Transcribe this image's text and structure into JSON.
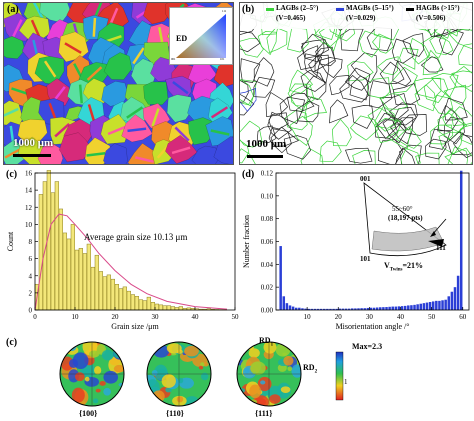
{
  "panel_a": {
    "label": "(a)",
    "legend_label": "ED",
    "scale_bar": "1000 μm",
    "ipf_corners": [
      "001",
      "101",
      "111"
    ]
  },
  "panel_b": {
    "label": "(b)",
    "scale_bar": "1000 μm",
    "legend": [
      {
        "name": "LAGBs (2–5°)",
        "value": "(V=0.465)",
        "color": "#3ad43a"
      },
      {
        "name": "MAGBs (5–15°)",
        "value": "(V=0.029)",
        "color": "#2b3fd6"
      },
      {
        "name": "HAGBs (>15°)",
        "value": "(V=0.506)",
        "color": "#000000"
      }
    ]
  },
  "panel_c": {
    "label": "(c)",
    "annotation": "Average grain size 10.13 μm"
  },
  "panel_d": {
    "label": "(d)",
    "inset": {
      "corner_001": "001",
      "corner_101": "101",
      "corner_111": "111",
      "range": "55~60°",
      "pts": "(18,197 pts)",
      "twins": "V",
      "twins_sub": "Twins",
      "twins_value": "=21%"
    }
  },
  "panel_e": {
    "label": "(c)",
    "figures": [
      "{100}",
      "{110}",
      "{111}"
    ],
    "rd1": "RD",
    "rd1_sub": "1",
    "rd2": "RD",
    "rd2_sub": "2",
    "max_label": "Max=2.3",
    "scale_tick": "1"
  },
  "chart_data": [
    {
      "type": "bar",
      "xlabel": "Grain size /μm",
      "ylabel": "Count",
      "xlim": [
        0,
        50
      ],
      "ylim": [
        0,
        16
      ],
      "xticks": [
        0,
        10,
        20,
        30,
        40,
        50
      ],
      "yticks": [
        0,
        2,
        4,
        6,
        8,
        10,
        12,
        14,
        16
      ],
      "bar_width": 1,
      "x": [
        1,
        2,
        3,
        4,
        5,
        6,
        7,
        8,
        9,
        10,
        11,
        12,
        13,
        14,
        15,
        16,
        17,
        18,
        19,
        20,
        21,
        22,
        23,
        24,
        25,
        26,
        27,
        28,
        29,
        30,
        31,
        32,
        33,
        34,
        35,
        36,
        37,
        38,
        39,
        40,
        41,
        42,
        43,
        44,
        45,
        46,
        47,
        48
      ],
      "values": [
        3,
        13.5,
        15,
        16.3,
        13.7,
        15,
        11.8,
        9,
        8.3,
        10,
        7,
        7.2,
        6.6,
        7.7,
        5,
        6.4,
        4.5,
        3.9,
        4.1,
        3.6,
        3,
        2.5,
        2.7,
        2.2,
        1.8,
        1.6,
        1.2,
        1.1,
        1.5,
        0.9,
        0.7,
        0.6,
        0.5,
        0.5,
        0.4,
        0.3,
        0.4,
        0.2,
        0.25,
        0.2,
        0.15,
        0.1,
        0.1,
        0.15,
        0.08,
        0.06,
        0.05,
        0.05
      ],
      "fit_curve": {
        "x": [
          0,
          2,
          4,
          6,
          8,
          10,
          13,
          16,
          20,
          24,
          28,
          33,
          40,
          48
        ],
        "y": [
          0,
          6,
          10,
          11.2,
          11,
          10,
          8.4,
          6.6,
          4.6,
          3,
          1.9,
          1,
          0.4,
          0.1
        ]
      }
    },
    {
      "type": "bar",
      "xlabel": "Misorientation angle /°",
      "ylabel": "Number fraction",
      "xlim": [
        0,
        62
      ],
      "ylim": [
        0,
        0.12
      ],
      "xticks": [
        10,
        20,
        30,
        40,
        50,
        60
      ],
      "yticks": [
        0.0,
        0.02,
        0.04,
        0.06,
        0.08,
        0.1,
        0.12
      ],
      "x": [
        2,
        3,
        4,
        5,
        6,
        7,
        8,
        9,
        10,
        11,
        12,
        13,
        14,
        15,
        16,
        17,
        18,
        19,
        20,
        21,
        22,
        23,
        24,
        25,
        26,
        27,
        28,
        29,
        30,
        31,
        32,
        33,
        34,
        35,
        36,
        37,
        38,
        39,
        40,
        41,
        42,
        43,
        44,
        45,
        46,
        47,
        48,
        49,
        50,
        51,
        52,
        53,
        54,
        55,
        56,
        57,
        58,
        59,
        60
      ],
      "values": [
        0.056,
        0.012,
        0.006,
        0.004,
        0.003,
        0.002,
        0.002,
        0.0015,
        0.0012,
        0.001,
        0.001,
        0.001,
        0.001,
        0.001,
        0.001,
        0.001,
        0.001,
        0.001,
        0.001,
        0.0012,
        0.0012,
        0.0012,
        0.0012,
        0.0014,
        0.0014,
        0.0015,
        0.0016,
        0.0016,
        0.0018,
        0.002,
        0.002,
        0.0022,
        0.0024,
        0.0025,
        0.0026,
        0.0028,
        0.003,
        0.003,
        0.0032,
        0.0034,
        0.0036,
        0.004,
        0.0042,
        0.0045,
        0.005,
        0.0055,
        0.006,
        0.0065,
        0.007,
        0.0075,
        0.008,
        0.008,
        0.0085,
        0.009,
        0.012,
        0.016,
        0.02,
        0.03,
        0.122
      ]
    }
  ]
}
